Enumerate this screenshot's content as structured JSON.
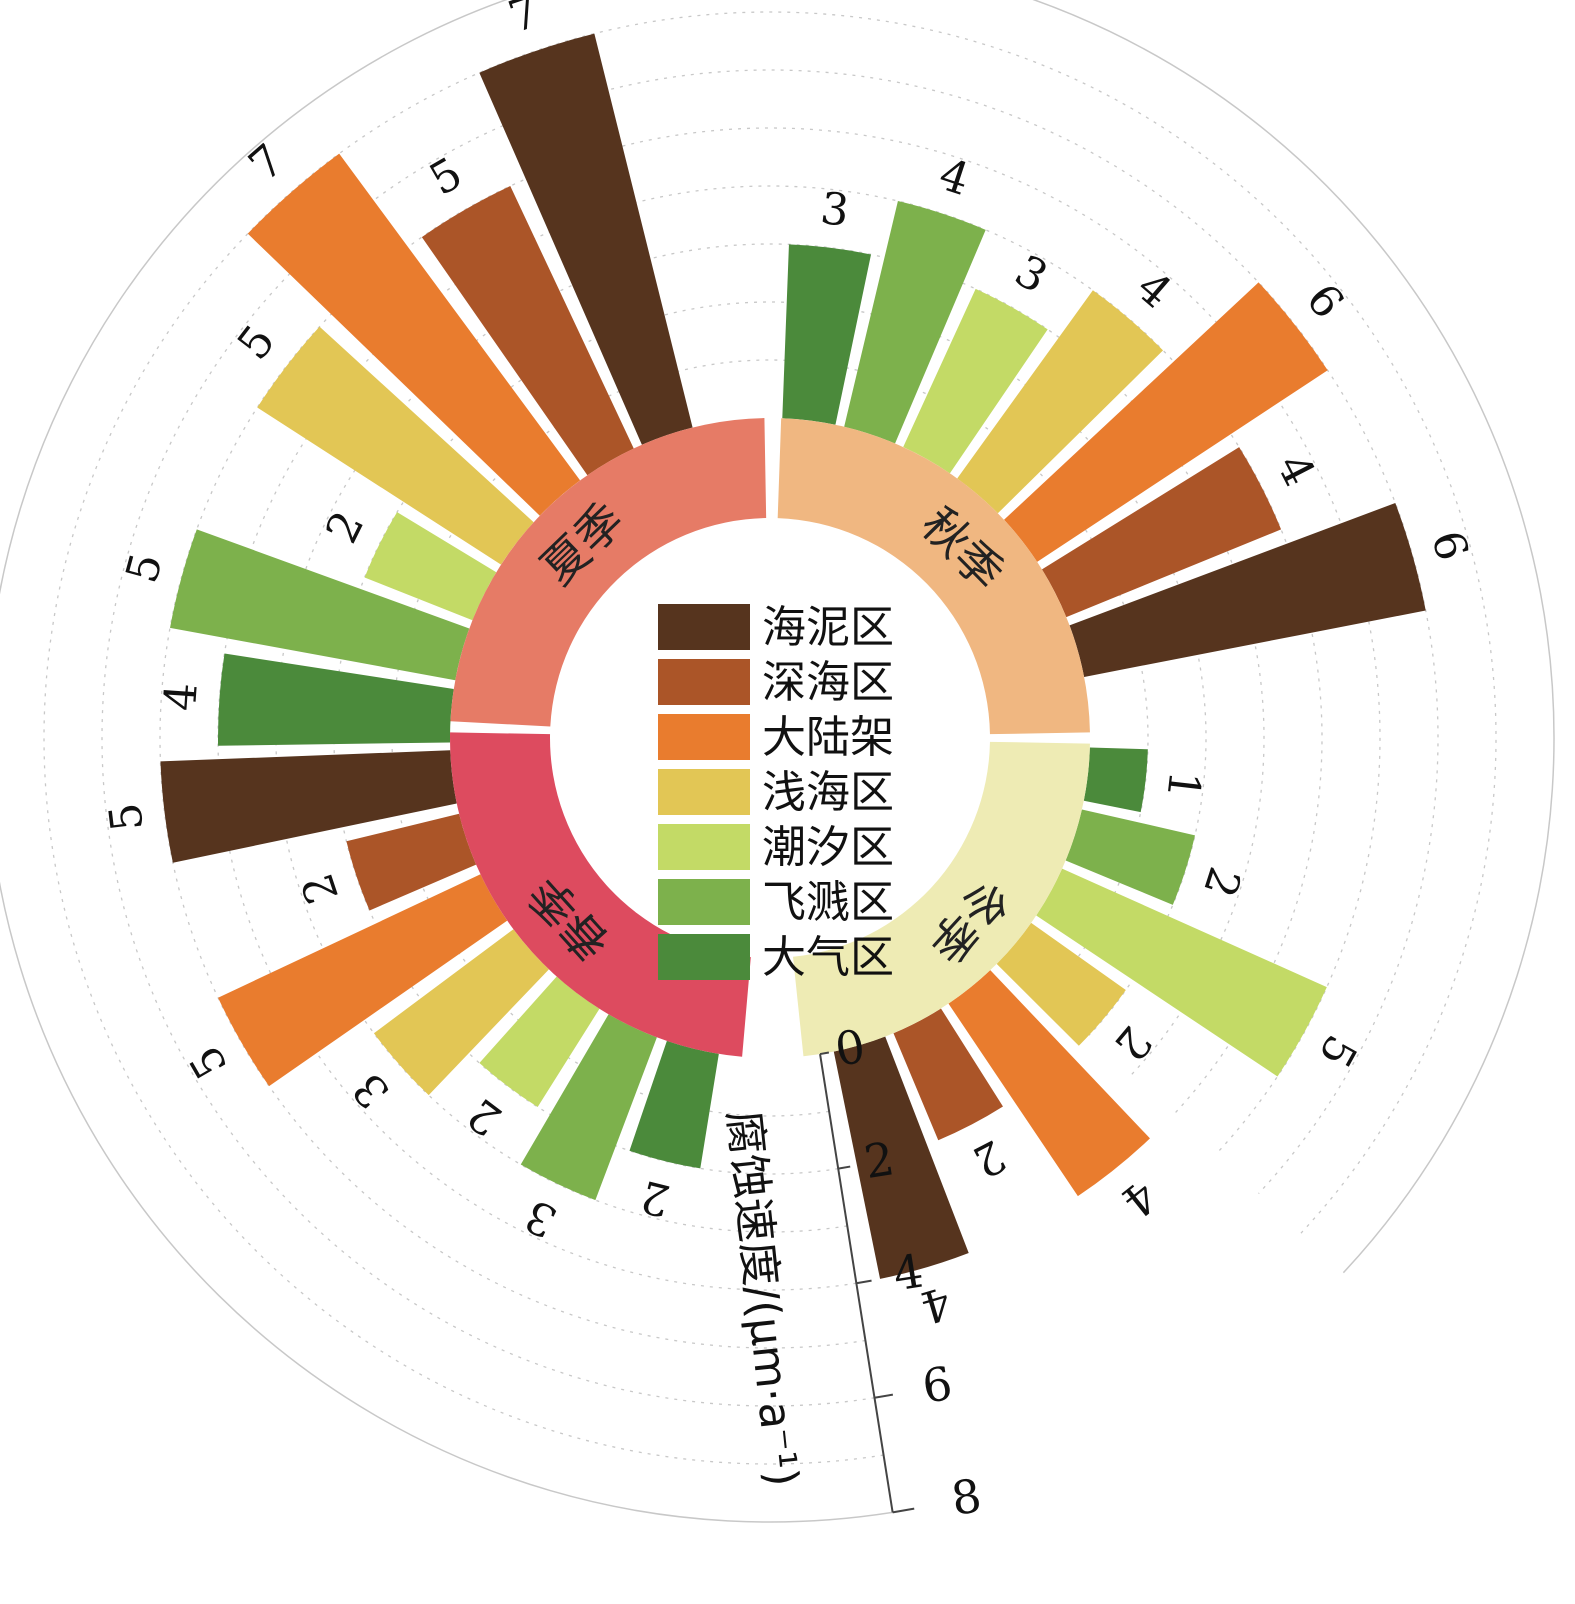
{
  "chart_data": {
    "type": "radial-bar",
    "axis_label": "腐蚀速度/(μm·a⁻¹)",
    "radial_ticks": [
      "0",
      "2",
      "4",
      "6",
      "8"
    ],
    "rlim": [
      0,
      8
    ],
    "legend_placement": "center",
    "series": [
      {
        "name": "海泥区",
        "color": "#56341e"
      },
      {
        "name": "深海区",
        "color": "#ab5528"
      },
      {
        "name": "大陆架",
        "color": "#e97c2e"
      },
      {
        "name": "浅海区",
        "color": "#e2c655"
      },
      {
        "name": "潮汐区",
        "color": "#c3da66"
      },
      {
        "name": "飞溅区",
        "color": "#7db14c"
      },
      {
        "name": "大气区",
        "color": "#4b8a3b"
      }
    ],
    "seasons": [
      {
        "name": "春季",
        "color": "#dd4b5f",
        "values": [
          5,
          2,
          5,
          3,
          2,
          3,
          2
        ]
      },
      {
        "name": "夏季",
        "color": "#e67b66",
        "values": [
          7,
          5,
          7,
          5,
          2,
          5,
          4
        ]
      },
      {
        "name": "秋季",
        "color": "#f0b781",
        "values": [
          6,
          4,
          6,
          4,
          3,
          4,
          3
        ]
      },
      {
        "name": "冬季",
        "color": "#eeebb4",
        "values": [
          4,
          2,
          4,
          2,
          5,
          2,
          1
        ]
      }
    ]
  }
}
